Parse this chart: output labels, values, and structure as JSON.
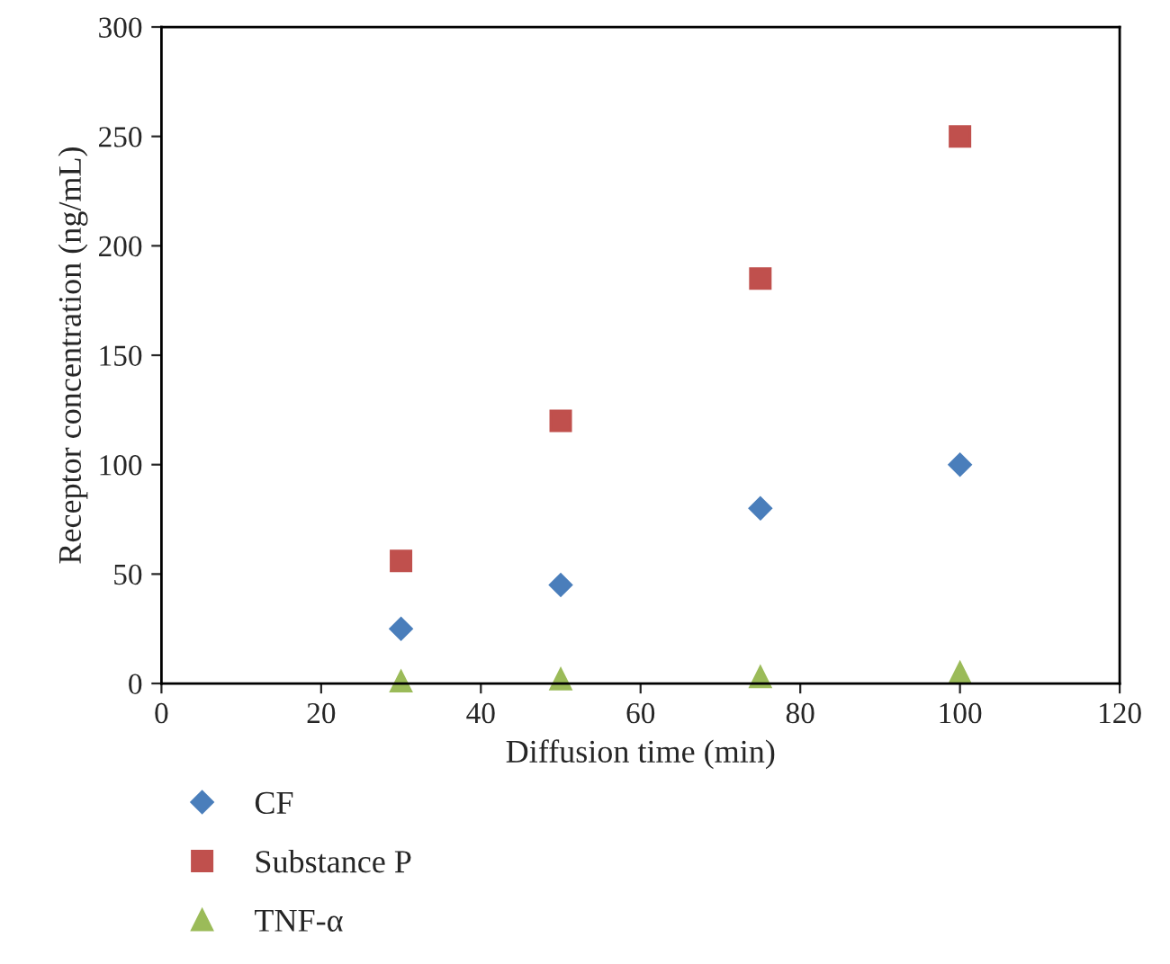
{
  "chart_data": {
    "type": "scatter",
    "xlabel": "Diffusion time (min)",
    "ylabel": "Receptor concentration (ng/mL)",
    "x": [
      30,
      50,
      75,
      100
    ],
    "series": [
      {
        "name": "CF",
        "color": "#4a7ebb",
        "marker": "diamond",
        "values": [
          25,
          45,
          80,
          100
        ]
      },
      {
        "name": "Substance P",
        "color": "#c0504d",
        "marker": "square",
        "values": [
          56,
          120,
          185,
          250
        ]
      },
      {
        "name": "TNF-α",
        "color": "#9bbb59",
        "marker": "triangle",
        "values": [
          1,
          2,
          3,
          5
        ]
      }
    ],
    "xlim": [
      0,
      120
    ],
    "xticks": [
      0,
      20,
      40,
      60,
      80,
      100,
      120
    ],
    "ylim": [
      0,
      300
    ],
    "yticks": [
      0,
      50,
      100,
      150,
      200,
      250,
      300
    ],
    "grid": false,
    "legend": "bottom"
  }
}
